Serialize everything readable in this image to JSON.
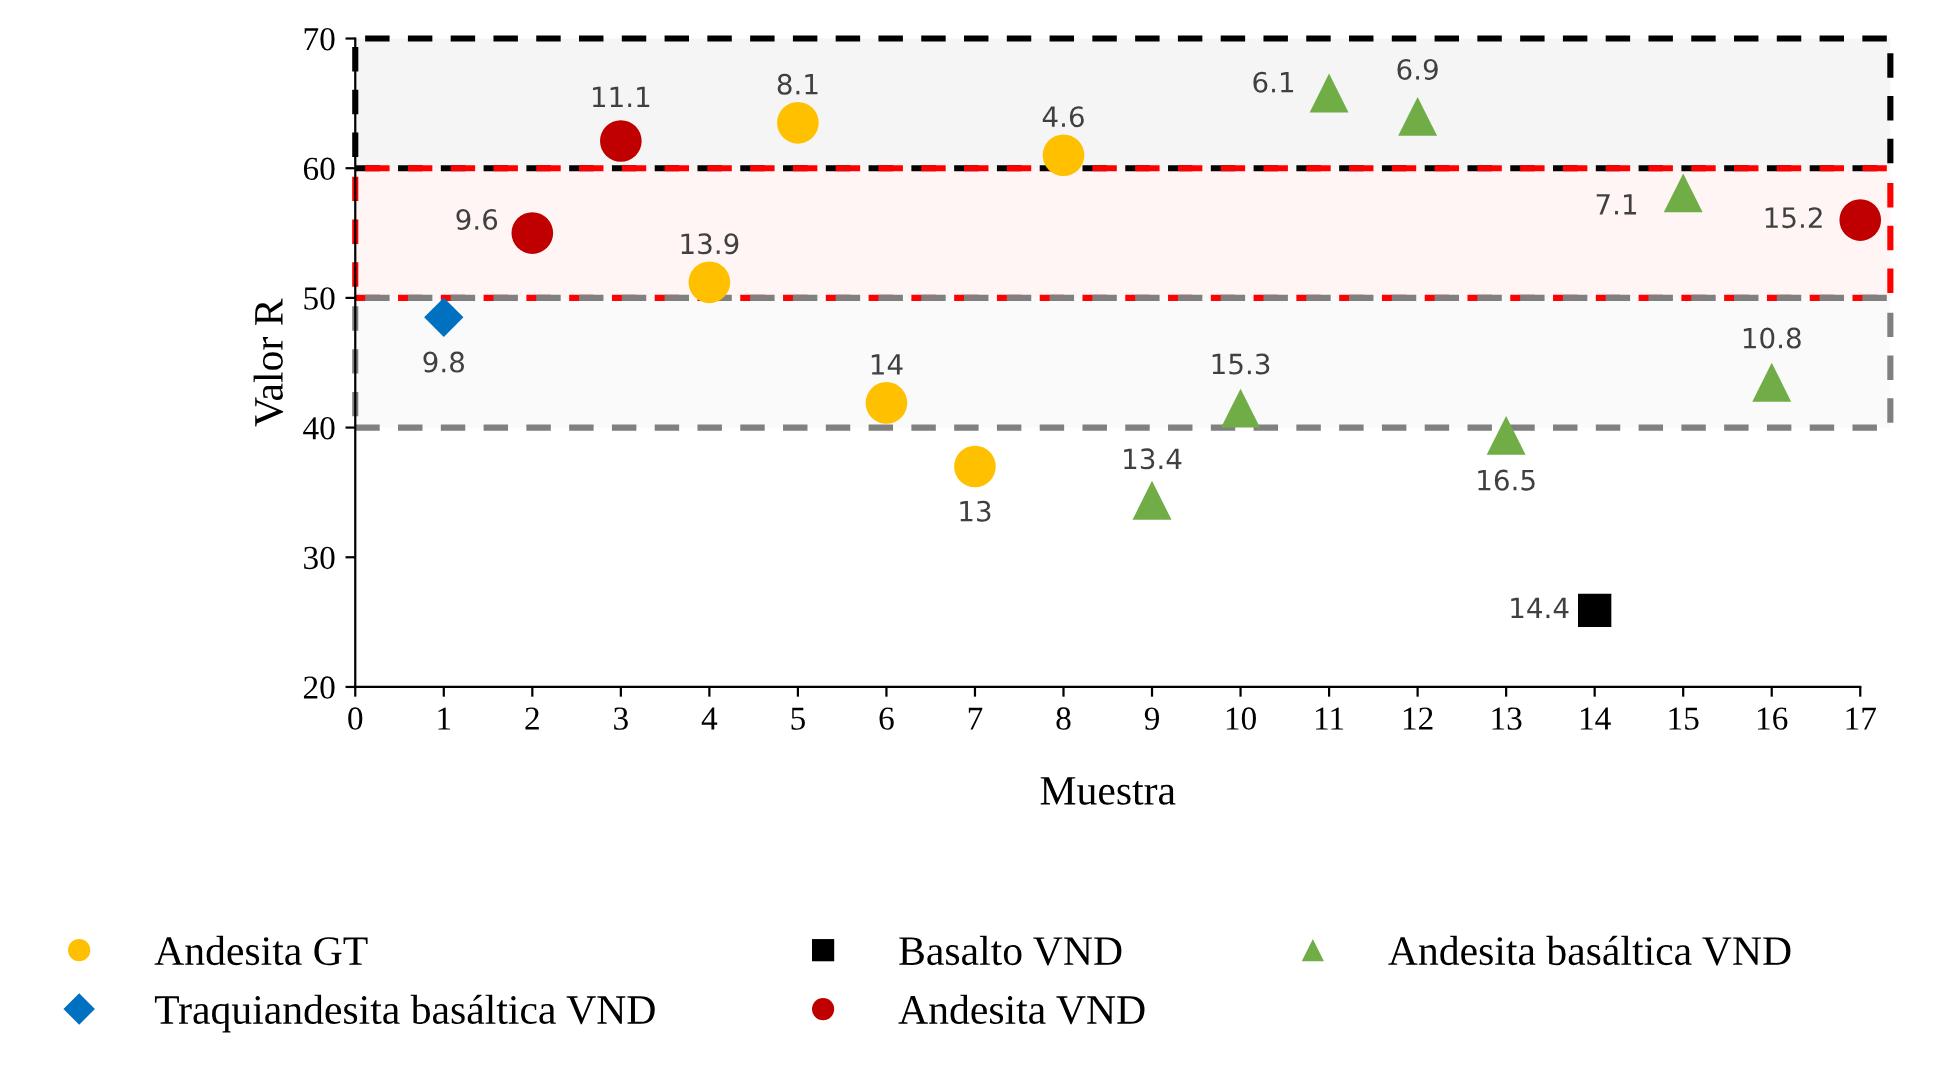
{
  "chart_data": {
    "type": "scatter",
    "xlabel": "Muestra",
    "ylabel": "Valor R",
    "xlim": [
      0,
      17
    ],
    "xticks": [
      0,
      1,
      2,
      3,
      4,
      5,
      6,
      7,
      8,
      9,
      10,
      11,
      12,
      13,
      14,
      15,
      16,
      17
    ],
    "ylim": [
      20,
      70
    ],
    "yticks": [
      20,
      30,
      40,
      50,
      60,
      70
    ],
    "grid": false,
    "legend": "bottom",
    "bands": [
      {
        "axis": "y",
        "from": 60,
        "to": 70,
        "color": "#000000"
      },
      {
        "axis": "y",
        "from": 50,
        "to": 60,
        "color": "#ff0000"
      },
      {
        "axis": "y",
        "from": 40,
        "to": 50,
        "color": "#808080"
      }
    ],
    "series": [
      {
        "name": "Andesita GT",
        "color": "#ffc000",
        "marker": "circle",
        "x": [
          4,
          5,
          6,
          7,
          8
        ],
        "values": [
          51.2,
          63.5,
          41.9,
          37,
          61
        ]
      },
      {
        "name": "Traquiandesita basáltica VND",
        "color": "#0070c0",
        "marker": "diamond",
        "x": [
          1
        ],
        "values": [
          48.5
        ]
      },
      {
        "name": "Basalto VND",
        "color": "#000000",
        "marker": "square",
        "x": [
          14
        ],
        "values": [
          25.9
        ]
      },
      {
        "name": "Andesita VND",
        "color": "#c00000",
        "marker": "circle",
        "x": [
          2,
          3,
          17
        ],
        "values": [
          55,
          62.1,
          56
        ]
      },
      {
        "name": "Andesita basáltica VND",
        "color": "#70ad47",
        "marker": "triangle",
        "x": [
          9,
          10,
          11,
          12,
          13,
          15,
          16
        ],
        "values": [
          34.4,
          41.5,
          65.8,
          64,
          39.4,
          58.1,
          43.5
        ]
      }
    ],
    "annotations": [
      {
        "text": "13.9",
        "x": 4,
        "y": 51.2
      },
      {
        "text": "8.1",
        "x": 5,
        "y": 63.5
      },
      {
        "text": "14",
        "x": 6,
        "y": 41.9
      },
      {
        "text": "13",
        "x": 7,
        "y": 37
      },
      {
        "text": "4.6",
        "x": 8,
        "y": 61
      },
      {
        "text": "9.8",
        "x": 1,
        "y": 48.5
      },
      {
        "text": "14.4",
        "x": 14,
        "y": 25.9
      },
      {
        "text": "9.6",
        "x": 2,
        "y": 55
      },
      {
        "text": "11.1",
        "x": 3,
        "y": 62.1
      },
      {
        "text": "15.2",
        "x": 17,
        "y": 56
      },
      {
        "text": "13.4",
        "x": 9,
        "y": 34.4
      },
      {
        "text": "15.3",
        "x": 10,
        "y": 41.5
      },
      {
        "text": "6.1",
        "x": 11,
        "y": 65.8
      },
      {
        "text": "6.9",
        "x": 12,
        "y": 64
      },
      {
        "text": "16.5",
        "x": 13,
        "y": 39.4
      },
      {
        "text": "7.1",
        "x": 15,
        "y": 58.1
      },
      {
        "text": "10.8",
        "x": 16,
        "y": 43.5
      }
    ]
  }
}
